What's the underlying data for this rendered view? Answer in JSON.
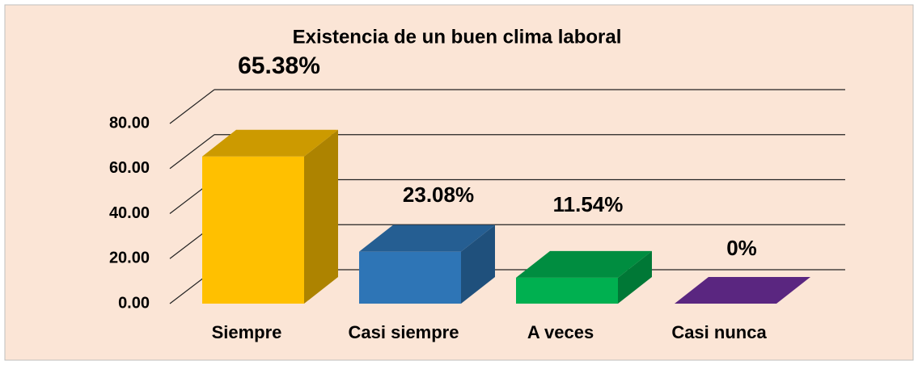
{
  "chart_data": {
    "type": "bar3d",
    "title": "Existencia de un buen clima laboral",
    "categories": [
      "Siempre",
      "Casi siempre",
      "A veces",
      "Casi nunca"
    ],
    "values": [
      65.38,
      23.08,
      11.54,
      0
    ],
    "value_labels": [
      "65.38%",
      "23.08%",
      "11.54%",
      "0%"
    ],
    "colors": [
      "#FFC000",
      "#2E75B6",
      "#00B050",
      "#7030A0"
    ],
    "ylim": [
      0,
      80
    ],
    "yticks": [
      {
        "value": 0,
        "label": "0.00"
      },
      {
        "value": 20,
        "label": "20.00"
      },
      {
        "value": 40,
        "label": "40.00"
      },
      {
        "value": 60,
        "label": "60.00"
      },
      {
        "value": 80,
        "label": "80.00"
      }
    ],
    "grid": true
  }
}
